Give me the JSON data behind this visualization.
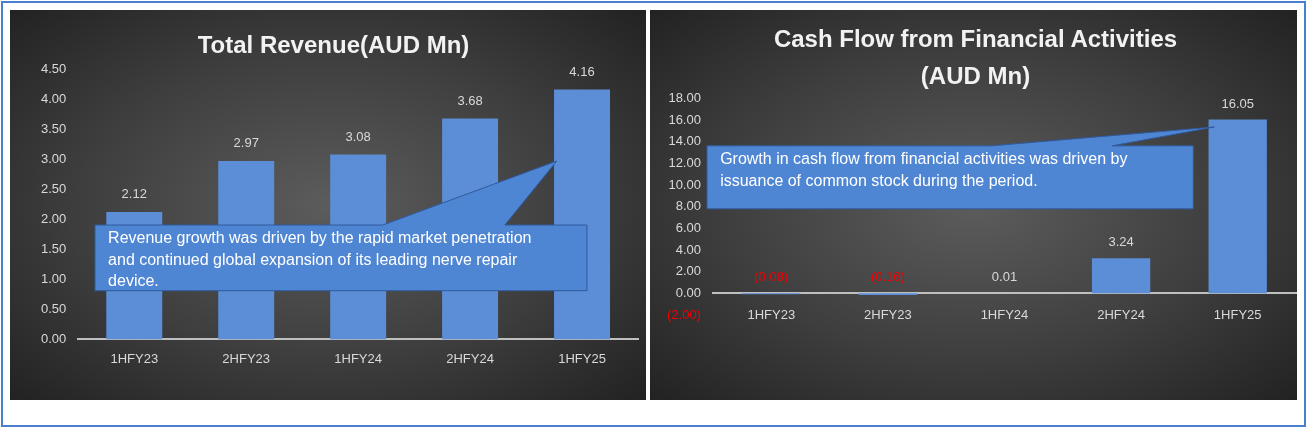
{
  "chart_data": [
    {
      "type": "bar",
      "title": "Total Revenue(AUD Mn)",
      "categories": [
        "1HFY23",
        "2HFY23",
        "1HFY24",
        "2HFY24",
        "1HFY25"
      ],
      "values": [
        2.12,
        2.97,
        3.08,
        3.68,
        4.16
      ],
      "color": "#5b8ed6",
      "ylim": [
        0,
        4.5
      ],
      "yticks": [
        {
          "value": 0,
          "label": "0.00"
        },
        {
          "value": 0.5,
          "label": "0.50"
        },
        {
          "value": 1,
          "label": "1.00"
        },
        {
          "value": 1.5,
          "label": "1.50"
        },
        {
          "value": 2,
          "label": "2.00"
        },
        {
          "value": 2.5,
          "label": "2.50"
        },
        {
          "value": 3,
          "label": "3.00"
        },
        {
          "value": 3.5,
          "label": "3.50"
        },
        {
          "value": 4,
          "label": "4.00"
        },
        {
          "value": 4.5,
          "label": "4.50"
        }
      ],
      "data_labels": true,
      "annotations": [
        "Revenue growth was driven by the rapid market penetration and continued global expansion of its leading nerve repair device."
      ]
    },
    {
      "type": "bar",
      "title": "Cash Flow from Financial Activities (AUD Mn)",
      "categories": [
        "1HFY23",
        "2HFY23",
        "1HFY24",
        "2HFY24",
        "1HFY25"
      ],
      "values": [
        -0.08,
        -0.16,
        0.01,
        3.24,
        16.05
      ],
      "color": "#5b8ed6",
      "ylim": [
        -2,
        18
      ],
      "yticks": [
        {
          "value": -2,
          "label": "(2.00)"
        },
        {
          "value": 0,
          "label": "0.00"
        },
        {
          "value": 2,
          "label": "2.00"
        },
        {
          "value": 4,
          "label": "4.00"
        },
        {
          "value": 6,
          "label": "6.00"
        },
        {
          "value": 8,
          "label": "8.00"
        },
        {
          "value": 10,
          "label": "10.00"
        },
        {
          "value": 12,
          "label": "12.00"
        },
        {
          "value": 14,
          "label": "14.00"
        },
        {
          "value": 16,
          "label": "16.00"
        },
        {
          "value": 18,
          "label": "18.00"
        }
      ],
      "value_labels": [
        "(0.08)",
        "(0.16)",
        "0.01",
        "3.24",
        "16.05"
      ],
      "annotations": [
        "Growth in cash flow from financial activities was driven by issuance of common stock during the period."
      ]
    }
  ]
}
